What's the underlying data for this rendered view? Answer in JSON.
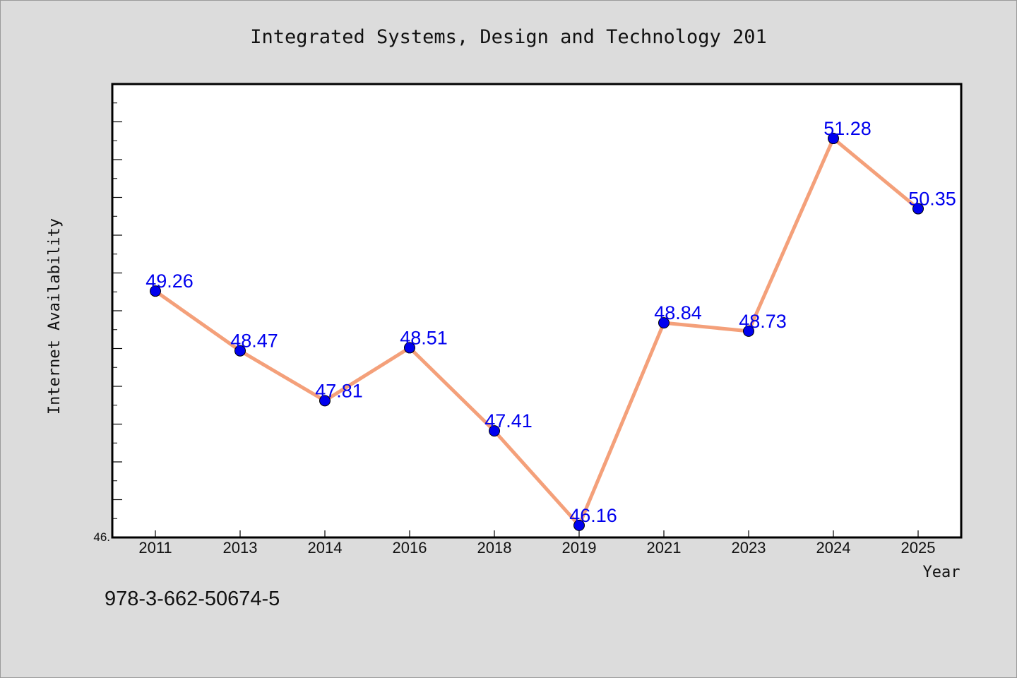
{
  "chart_data": {
    "type": "line",
    "title": "Integrated Systems, Design and Technology 201",
    "xlabel": "Year",
    "ylabel": "Internet Availability",
    "categories": [
      "2011",
      "2013",
      "2014",
      "2016",
      "2018",
      "2019",
      "2021",
      "2023",
      "2024",
      "2025"
    ],
    "series": [
      {
        "values": [
          49.26,
          48.47,
          47.81,
          48.51,
          47.41,
          46.16,
          48.84,
          48.73,
          51.28,
          50.35
        ]
      }
    ],
    "data_labels": [
      "49.26",
      "48.47",
      "47.81",
      "48.51",
      "47.41",
      "46.16",
      "48.84",
      "48.73",
      "51.28",
      "50.35"
    ],
    "y_tick_labels_shown": [
      "46."
    ],
    "ylim": [
      46.0,
      52.0
    ],
    "grid": false,
    "legend": "none",
    "line_color": "#f4a07a",
    "marker_color": "#0000ee",
    "label_color": "#0000ee"
  },
  "footer": {
    "isbn": "978-3-662-50674-5"
  }
}
